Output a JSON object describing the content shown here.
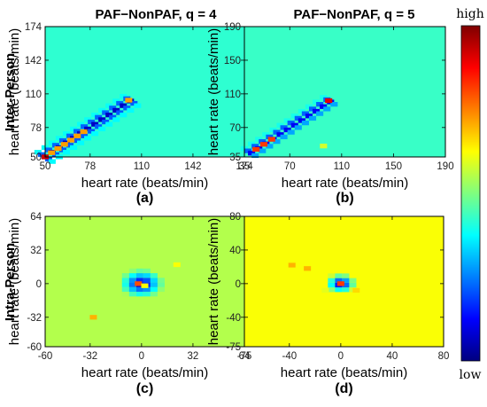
{
  "column_titles": [
    "PAF−NonPAF, q = 4",
    "PAF−NonPAF, q = 5"
  ],
  "row_labels": [
    "Inter-Person",
    "Intra-Person"
  ],
  "colorbar": {
    "high": "high",
    "low": "low",
    "colors": [
      "#00007f",
      "#0000ff",
      "#007fff",
      "#00ffff",
      "#7fff7f",
      "#ffff00",
      "#ff7f00",
      "#ff0000",
      "#7f0000"
    ]
  },
  "chart_data": [
    {
      "type": "heatmap",
      "panel": "(a)",
      "title": "PAF−NonPAF, q = 4",
      "row_label": "Inter-Person",
      "xlabel": "heart rate (beats/min)",
      "ylabel": "heart rate (beats/min)",
      "xticks": [
        50,
        78,
        110,
        142,
        174
      ],
      "yticks": [
        50,
        78,
        110,
        142,
        174
      ],
      "xlim": [
        50,
        174
      ],
      "ylim": [
        50,
        174
      ],
      "background_level": 0.42,
      "features": [
        {
          "kind": "diagonal_band",
          "from": 50,
          "to": 106,
          "level": 0.06,
          "width": 9
        },
        {
          "kind": "diagonal_points",
          "level": 0.72,
          "points": [
            54,
            58,
            62,
            66,
            70,
            74
          ]
        },
        {
          "kind": "spot",
          "x": 102,
          "y": 104,
          "level": 0.72
        },
        {
          "kind": "spot",
          "x": 50,
          "y": 50,
          "level": 0.92
        }
      ]
    },
    {
      "type": "heatmap",
      "panel": "(b)",
      "title": "PAF−NonPAF, q = 5",
      "row_label": "Inter-Person",
      "xlabel": "heart rate (beats/min)",
      "ylabel": "heart rate (beats/min)",
      "xticks": [
        35,
        70,
        110,
        150,
        190
      ],
      "yticks": [
        35,
        70,
        110,
        150,
        190
      ],
      "xlim": [
        35,
        190
      ],
      "ylim": [
        35,
        190
      ],
      "background_level": 0.43,
      "features": [
        {
          "kind": "diagonal_band",
          "from": 40,
          "to": 104,
          "level": 0.08,
          "width": 10
        },
        {
          "kind": "diagonal_points",
          "level": 0.82,
          "points": [
            44,
            50,
            56
          ]
        },
        {
          "kind": "spot",
          "x": 100,
          "y": 102,
          "level": 0.9
        },
        {
          "kind": "spot",
          "x": 96,
          "y": 48,
          "level": 0.58
        }
      ]
    },
    {
      "type": "heatmap",
      "panel": "(c)",
      "title": "",
      "row_label": "Intra-Person",
      "xlabel": "heart rate (beats/min)",
      "ylabel": "heart rate (beats/min)",
      "xticks": [
        -60,
        -32,
        0,
        32,
        64
      ],
      "yticks": [
        -60,
        -32,
        0,
        32,
        64
      ],
      "xlim": [
        -60,
        64
      ],
      "ylim": [
        -60,
        64
      ],
      "background_level": 0.55,
      "features": [
        {
          "kind": "blob",
          "x": 0,
          "y": 0,
          "level": 0.04,
          "radius": 9
        },
        {
          "kind": "spot",
          "x": -2,
          "y": 0,
          "level": 0.8
        },
        {
          "kind": "spot",
          "x": 2,
          "y": -2,
          "level": 0.62
        },
        {
          "kind": "spot",
          "x": -30,
          "y": -32,
          "level": 0.7
        },
        {
          "kind": "spot",
          "x": 22,
          "y": 18,
          "level": 0.62
        }
      ]
    },
    {
      "type": "heatmap",
      "panel": "(d)",
      "title": "",
      "row_label": "Intra-Person",
      "xlabel": "heart rate (beats/min)",
      "ylabel": "heart rate (beats/min)",
      "xticks": [
        -75,
        -40,
        0,
        40,
        80
      ],
      "yticks": [
        -75,
        -40,
        0,
        40,
        80
      ],
      "xlim": [
        -75,
        80
      ],
      "ylim": [
        -75,
        80
      ],
      "background_level": 0.62,
      "features": [
        {
          "kind": "blob",
          "x": 0,
          "y": 0,
          "level": 0.04,
          "radius": 8
        },
        {
          "kind": "spot",
          "x": 0,
          "y": 0,
          "level": 0.82
        },
        {
          "kind": "spot",
          "x": 12,
          "y": -8,
          "level": 0.66
        },
        {
          "kind": "spot",
          "x": -12,
          "y": -8,
          "level": 0.6
        },
        {
          "kind": "spot",
          "x": -38,
          "y": 22,
          "level": 0.7
        },
        {
          "kind": "spot",
          "x": -26,
          "y": 18,
          "level": 0.7
        }
      ]
    }
  ]
}
